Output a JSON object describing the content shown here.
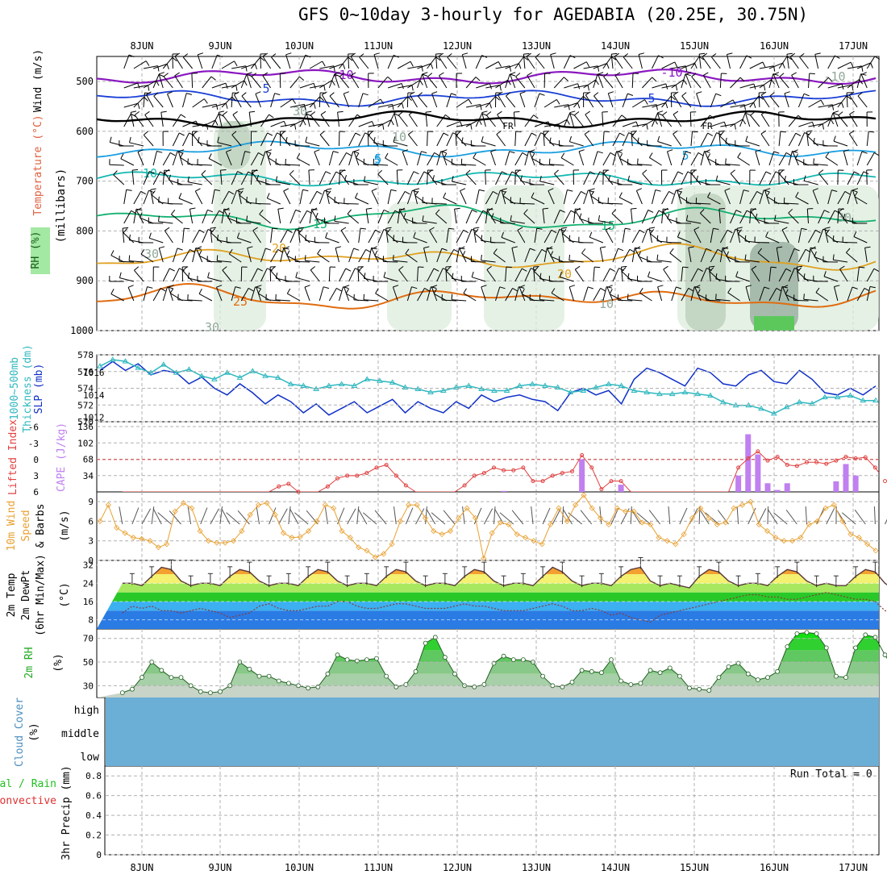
{
  "title": "GFS 0~10day 3-hourly for AGEDABIA (20.25E, 30.75N)",
  "days": [
    "8JUN",
    "9JUN",
    "10JUN",
    "11JUN",
    "12JUN",
    "13JUN",
    "14JUN",
    "15JUN",
    "16JUN",
    "17JUN"
  ],
  "run_total": "Run Total = 0",
  "colors": {
    "grid": "#a0a0a0",
    "temp_purple": "#8a17c0",
    "temp_blue": "#1a3fd6",
    "freezing": "#000000",
    "temp_lightblue": "#1a9ee0",
    "temp_teal": "#14b8b0",
    "temp_green": "#12b070",
    "temp_orange": "#e0a020",
    "temp_darkorange": "#e06c10",
    "rh_green_light": "#dcecdc",
    "rh_green_mid": "#b8ccb8",
    "rh_green_dark": "#90a898",
    "slp": "#1030c8",
    "thickness": "#30b8c0",
    "lifted": "#e04040",
    "cape": "#c080f0",
    "wind": "#e8a030",
    "rh2m": "#22c022",
    "cloud": "#6baed6",
    "precip_total": "#22c022",
    "precip_conv": "#e03030"
  },
  "panels": {
    "upper": {
      "y_axis_label": "(millibars)",
      "side_labels": [
        "Wind (m/s)",
        "Temperature (°C)",
        "RH (%)"
      ],
      "ticks": [
        "500",
        "600",
        "700",
        "800",
        "900",
        "1000"
      ],
      "contour_labels": [
        "-10",
        "-10",
        "-10",
        "5",
        "5",
        "5",
        "FR",
        "FR",
        "10",
        "5",
        "5",
        "15",
        "15",
        "20",
        "20",
        "25",
        "10",
        "30",
        "30",
        "30",
        "30",
        "10"
      ]
    },
    "pressure": {
      "left_labels": [
        "1000~500mb",
        "Thickness (dm)"
      ],
      "right_label": "SLP (mb)",
      "left_ticks": [
        "578",
        "576",
        "574",
        "572",
        "570"
      ],
      "right_ticks": [
        "1016",
        "1014",
        "1012"
      ]
    },
    "cape": {
      "left_label": "Lifted Index",
      "right_label": "CAPE (J/kg)",
      "left_ticks": [
        "-6",
        "-3",
        "0",
        "3",
        "6"
      ],
      "right_ticks": [
        "136",
        "102",
        "68",
        "34"
      ]
    },
    "wind": {
      "labels": [
        "10m Wind",
        "Speed",
        "& Barbs"
      ],
      "unit": "(m/s)",
      "ticks": [
        "9",
        "6",
        "3",
        "0"
      ]
    },
    "temp": {
      "labels": [
        "2m Temp",
        "2m DewPt",
        "(6hr Min/Max)"
      ],
      "unit": "(°C)",
      "ticks": [
        "32",
        "24",
        "16",
        "8"
      ]
    },
    "rh": {
      "label": "2m RH",
      "unit": "(%)",
      "ticks": [
        "70",
        "50",
        "30"
      ]
    },
    "cloud": {
      "label": "Cloud Cover",
      "unit": "(%)",
      "levels": [
        "high",
        "middle",
        "low"
      ]
    },
    "precip": {
      "labels": [
        "Total / Rain",
        "Convective"
      ],
      "axis_label": "3hr Precip (mm)",
      "ticks": [
        "0.8",
        "0.6",
        "0.4",
        "0.2",
        "0"
      ]
    }
  },
  "chart_data": [
    {
      "type": "line",
      "panel": "thickness_slp",
      "series": [
        {
          "name": "1000~500mb Thickness (dm)",
          "values": [
            576.8,
            577.6,
            577.4,
            576.6,
            576.0,
            577.0,
            576.0,
            576.4,
            575.6,
            575.2,
            576.0,
            575.4,
            576.2,
            575.6,
            575.4,
            574.6,
            574.4,
            574.0,
            574.4,
            574.6,
            574.4,
            575.2,
            575.0,
            574.8,
            574.2,
            574.0,
            573.6,
            573.8,
            574.2,
            574.4,
            574.0,
            573.8,
            573.8,
            574.4,
            574.6,
            574.4,
            574.2,
            573.6,
            573.8,
            574.2,
            574.6,
            574.4,
            573.8,
            573.6,
            573.4,
            573.4,
            573.6,
            573.4,
            573.2,
            572.4,
            572.0,
            572.0,
            571.6,
            571.0,
            571.8,
            572.4,
            572.2,
            573.0,
            573.0,
            573.2,
            572.6,
            572.6
          ]
        },
        {
          "name": "SLP (mb)",
          "values": [
            1016.2,
            1017.0,
            1016.2,
            1016.8,
            1015.8,
            1016.2,
            1016.0,
            1015.0,
            1015.6,
            1014.6,
            1014.0,
            1015.0,
            1014.2,
            1013.2,
            1014.0,
            1013.4,
            1012.4,
            1013.2,
            1012.2,
            1012.8,
            1013.4,
            1012.4,
            1013.0,
            1013.6,
            1012.4,
            1013.4,
            1012.8,
            1012.4,
            1013.4,
            1012.8,
            1014.0,
            1013.4,
            1013.8,
            1014.0,
            1013.6,
            1013.4,
            1012.6,
            1014.2,
            1014.6,
            1014.0,
            1014.4,
            1013.2,
            1015.4,
            1016.4,
            1016.0,
            1015.4,
            1014.8,
            1016.4,
            1016.0,
            1015.0,
            1014.8,
            1015.8,
            1016.2,
            1015.2,
            1015.0,
            1016.2,
            1015.4,
            1014.2,
            1014.0,
            1014.6,
            1014.0,
            1014.8
          ]
        }
      ]
    },
    {
      "type": "line",
      "panel": "lifted_index_cape",
      "series": [
        {
          "name": "Lifted Index",
          "values": [
            7,
            7,
            7,
            7,
            7,
            7,
            7,
            7,
            7,
            7,
            7,
            7,
            7,
            7,
            7,
            7,
            5,
            4.5,
            6,
            7,
            7,
            5,
            3.5,
            3,
            3,
            2.5,
            1.5,
            1,
            3,
            4.8,
            7,
            7,
            7,
            7,
            7,
            4.8,
            3,
            2.5,
            1.5,
            2,
            2,
            1.5,
            4,
            4,
            3,
            2.5,
            2.2,
            -0.8,
            1.5,
            5.5,
            4,
            4,
            7,
            7,
            7,
            7,
            7,
            7,
            7,
            7,
            7,
            7,
            7,
            1.5,
            -0.2,
            -1.5,
            0.2,
            -0.5,
            1,
            1.2,
            0.5,
            0.5,
            0.8,
            0.2,
            -0.5,
            -0.2,
            -0.4,
            1.5,
            4,
            7
          ]
        },
        {
          "name": "CAPE (J/kg)",
          "values": [
            0,
            0,
            0,
            0,
            0,
            0,
            0,
            0,
            0,
            0,
            0,
            0,
            0,
            0,
            0,
            0,
            0,
            0,
            0,
            0,
            0,
            0,
            0,
            0,
            0,
            0,
            0,
            0,
            0,
            0,
            0,
            0,
            0,
            0,
            0,
            0,
            0,
            0,
            0,
            2,
            0,
            0,
            0,
            0,
            0,
            0,
            0,
            68,
            0,
            0,
            0,
            15,
            0,
            0,
            0,
            0,
            0,
            0,
            0,
            0,
            0,
            0,
            0,
            34,
            120,
            78,
            18,
            4,
            18,
            0,
            0,
            0,
            0,
            22,
            58,
            34,
            0,
            0,
            0,
            0
          ]
        }
      ]
    },
    {
      "type": "line",
      "panel": "wind_speed",
      "series": [
        {
          "name": "10m Wind Speed (m/s)",
          "values": [
            6.0,
            8.5,
            5.0,
            4.2,
            3.5,
            3.3,
            3.0,
            2.0,
            2.5,
            7.5,
            8.8,
            8.0,
            4.5,
            3.0,
            2.7,
            2.7,
            3.0,
            4.5,
            7.0,
            8.5,
            8.8,
            7.0,
            4.2,
            3.5,
            3.6,
            4.5,
            6.0,
            8.5,
            8.0,
            4.5,
            3.5,
            2.0,
            1.5,
            0.5,
            1.0,
            2.5,
            6.0,
            8.5,
            8.5,
            6.5,
            4.5,
            4.0,
            4.5,
            6.5,
            8.0,
            6.5,
            0.3,
            4.2,
            5.8,
            5.5,
            4.0,
            3.5,
            3.0,
            2.5,
            5.5,
            8.0,
            6.0,
            8.5,
            10.0,
            8.0,
            6.5,
            5.5,
            8.0,
            7.5,
            7.5,
            5.8,
            5.5,
            3.5,
            3.0,
            2.5,
            4.0,
            6.5,
            8.0,
            6.5,
            5.5,
            5.8,
            8.0,
            8.5,
            9.0,
            5.5,
            4.5,
            3.5,
            3.0,
            3.0,
            3.5,
            5.5,
            6.0,
            8.0,
            8.5,
            6.0,
            4.0,
            3.5,
            2.5,
            1.5
          ]
        }
      ]
    },
    {
      "type": "area",
      "panel": "temperature",
      "series": [
        {
          "name": "2m Temp (°C)",
          "values": [
            24,
            24,
            23,
            27,
            31,
            30,
            25,
            23,
            24,
            24,
            23,
            27,
            30,
            29,
            25,
            23,
            24,
            24,
            23,
            27,
            30,
            29,
            25,
            23,
            24,
            24,
            23,
            27,
            30,
            29,
            25,
            23,
            24,
            24,
            23,
            27,
            30,
            29,
            25,
            23,
            24,
            24,
            23,
            27,
            31,
            29,
            25,
            23,
            24,
            24,
            23,
            27,
            30,
            31,
            25,
            23,
            24,
            23,
            22,
            27,
            30,
            29,
            25,
            23,
            24,
            24,
            23,
            27,
            30,
            29,
            25,
            23,
            24,
            23,
            23,
            27,
            30,
            29,
            24,
            21
          ]
        },
        {
          "name": "2m DewPt (°C)",
          "values": [
            11,
            14,
            13,
            14,
            12,
            12,
            11,
            12,
            13,
            12,
            11,
            9,
            10,
            11,
            14,
            15,
            13,
            12,
            12,
            13,
            14,
            14,
            16,
            16,
            14,
            13,
            13,
            14,
            15,
            15,
            14,
            13,
            13,
            13,
            14,
            15,
            14,
            14,
            13,
            12,
            12,
            12,
            13,
            14,
            15,
            14,
            12,
            12,
            13,
            12,
            10,
            11,
            9,
            8,
            7,
            10,
            11,
            12,
            13,
            14,
            15,
            16,
            17,
            18,
            19,
            19,
            18,
            18,
            17,
            17,
            18,
            19,
            20,
            19,
            18,
            17,
            17,
            16,
            12,
            11
          ]
        }
      ]
    },
    {
      "type": "area",
      "panel": "rh_2m",
      "series": [
        {
          "name": "2m RH (%)",
          "values": [
            24,
            27,
            37,
            50,
            43,
            37,
            37,
            30,
            25,
            24,
            25,
            30,
            50,
            44,
            38,
            38,
            34,
            32,
            30,
            28,
            29,
            40,
            56,
            52,
            51,
            52,
            53,
            38,
            29,
            31,
            42,
            66,
            71,
            54,
            40,
            30,
            29,
            31,
            49,
            55,
            52,
            52,
            50,
            38,
            30,
            29,
            33,
            43,
            42,
            41,
            52,
            34,
            31,
            32,
            43,
            41,
            45,
            38,
            28,
            27,
            26,
            37,
            46,
            49,
            40,
            35,
            37,
            42,
            63,
            74,
            75,
            74,
            62,
            38,
            37,
            62,
            73,
            71,
            56,
            43
          ]
        }
      ]
    },
    {
      "type": "area",
      "panel": "cloud_cover",
      "series": [
        {
          "name": "high",
          "values": [
            100
          ]
        },
        {
          "name": "middle",
          "values": [
            100
          ]
        },
        {
          "name": "low",
          "values": [
            100
          ]
        }
      ]
    },
    {
      "type": "bar",
      "panel": "precip_3hr",
      "series": [
        {
          "name": "Total / Rain",
          "values": [
            0
          ]
        },
        {
          "name": "Convective",
          "values": [
            0
          ]
        }
      ],
      "ylim": [
        0,
        0.9
      ]
    }
  ]
}
